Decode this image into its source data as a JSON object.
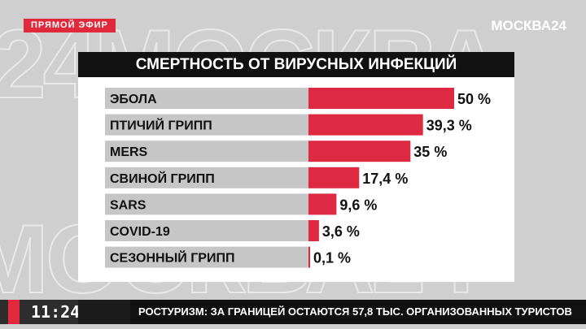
{
  "broadcast": {
    "live_label": "ПРЯМОЙ ЭФИР",
    "logo": "МОСКВА24",
    "clock": "11:24",
    "ticker_source": "",
    "ticker_text": "РОСТУРИЗМ: ЗА ГРАНИЦЕЙ ОСТАЮТСЯ 57,8 ТЫС. ОРГАНИЗОВАННЫХ ТУРИСТОВ"
  },
  "colors": {
    "accent": "#e02a3c",
    "bar": "#dd2a42",
    "track": "#c6c6c6",
    "title_bg": "#111111"
  },
  "chart_data": {
    "type": "bar",
    "orientation": "horizontal",
    "title": "СМЕРТНОСТЬ ОТ ВИРУСНЫХ ИНФЕКЦИЙ",
    "categories": [
      "ЭБОЛА",
      "ПТИЧИЙ ГРИПП",
      "MERS",
      "СВИНОЙ ГРИПП",
      "SARS",
      "COVID-19",
      "СЕЗОННЫЙ ГРИПП"
    ],
    "values": [
      50,
      39.3,
      35,
      17.4,
      9.6,
      3.6,
      0.1
    ],
    "value_labels": [
      "50 %",
      "39,3 %",
      "35 %",
      "17,4 %",
      "9,6 %",
      "3,6 %",
      "0,1 %"
    ],
    "xlim": [
      0,
      50
    ],
    "grid": false
  }
}
